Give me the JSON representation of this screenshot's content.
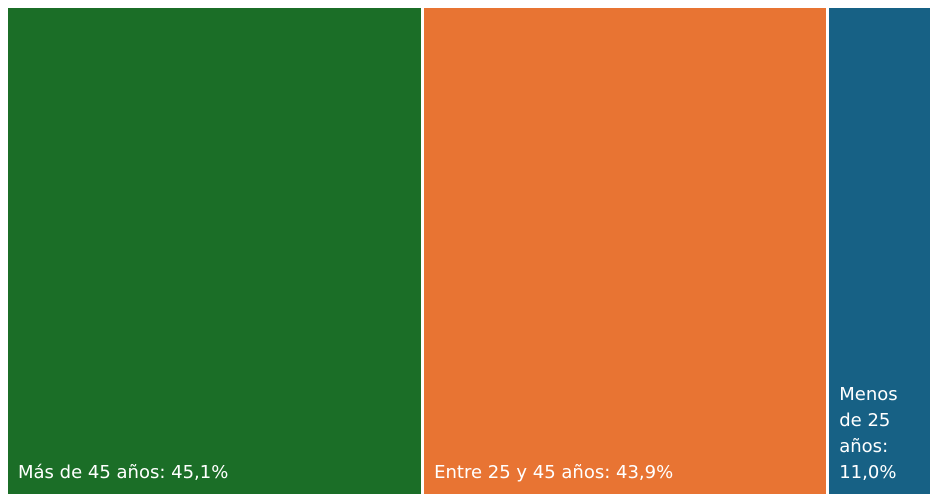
{
  "chart_data": {
    "type": "treemap",
    "categories": [
      "Más de 45 años",
      "Entre 25 y 45 años",
      "Menos de 25 años"
    ],
    "values": [
      45.1,
      43.9,
      11.0
    ],
    "value_labels": [
      "45,1%",
      "43,9%",
      "11,0%"
    ],
    "colors": [
      "#1b6e27",
      "#e87433",
      "#176185"
    ]
  }
}
